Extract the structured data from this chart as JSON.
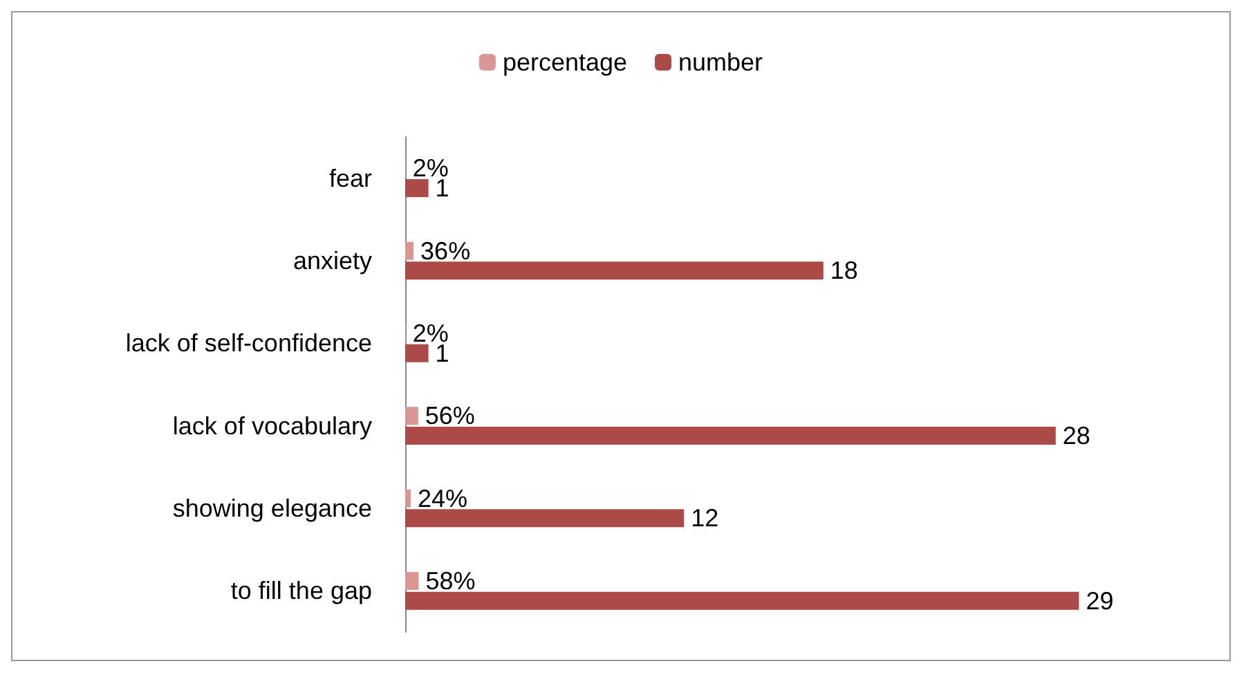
{
  "chart_data": {
    "type": "bar",
    "orientation": "horizontal",
    "categories": [
      "fear",
      "anxiety",
      "lack of self-confidence",
      "lack of vocabulary",
      "showing elegance",
      "to fill the gap"
    ],
    "series": [
      {
        "name": "percentage",
        "color": "#d99694",
        "values": [
          0.02,
          0.36,
          0.02,
          0.56,
          0.24,
          0.58
        ],
        "value_labels": [
          "2%",
          "36%",
          "2%",
          "56%",
          "24%",
          "58%"
        ]
      },
      {
        "name": "number",
        "color": "#ab4a47",
        "values": [
          1,
          18,
          1,
          28,
          12,
          29
        ],
        "value_labels": [
          "1",
          "18",
          "1",
          "28",
          "12",
          "29"
        ]
      }
    ],
    "legend": "top"
  }
}
